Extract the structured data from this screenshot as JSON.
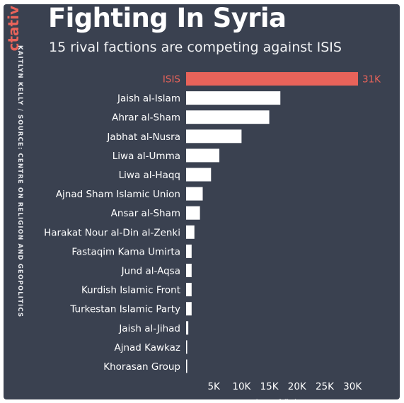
{
  "brand": "ctativ",
  "credit": "KAITLYN KELLY / SOURCE: CENTRE ON RELIGION AND GEOPOLITICS",
  "colors": {
    "background": "#3a4150",
    "highlight": "#e8635a",
    "bar": "#ffffff",
    "text": "#ffffff"
  },
  "chart_data": {
    "type": "bar",
    "orientation": "horizontal",
    "title": "Fighting In Syria",
    "subtitle": "15 rival factions are competing against ISIS",
    "xlabel": "Number of fighters",
    "xlim": [
      0,
      31000
    ],
    "xticks": [
      5000,
      10000,
      15000,
      20000,
      25000,
      30000
    ],
    "xtick_labels": [
      "5K",
      "10K",
      "15K",
      "20K",
      "25K",
      "30K"
    ],
    "grid": false,
    "categories": [
      "ISIS",
      "Jaish al-Islam",
      "Ahrar al-Sham",
      "Jabhat al-Nusra",
      "Liwa al-Umma",
      "Liwa al-Haqq",
      "Ajnad Sham Islamic Union",
      "Ansar al-Sham",
      "Harakat Nour al-Din al-Zenki",
      "Fastaqim Kama Umirta",
      "Jund al-Aqsa",
      "Kurdish Islamic Front",
      "Turkestan Islamic Party",
      "Jaish al-Jihad",
      "Ajnad Kawkaz",
      "Khorasan Group"
    ],
    "values": [
      31000,
      17000,
      15000,
      10000,
      6000,
      4500,
      3000,
      2500,
      1500,
      1000,
      1000,
      1000,
      1000,
      400,
      200,
      200
    ],
    "highlight_index": 0,
    "data_labels": [
      {
        "index": 0,
        "text": "31K"
      }
    ]
  }
}
